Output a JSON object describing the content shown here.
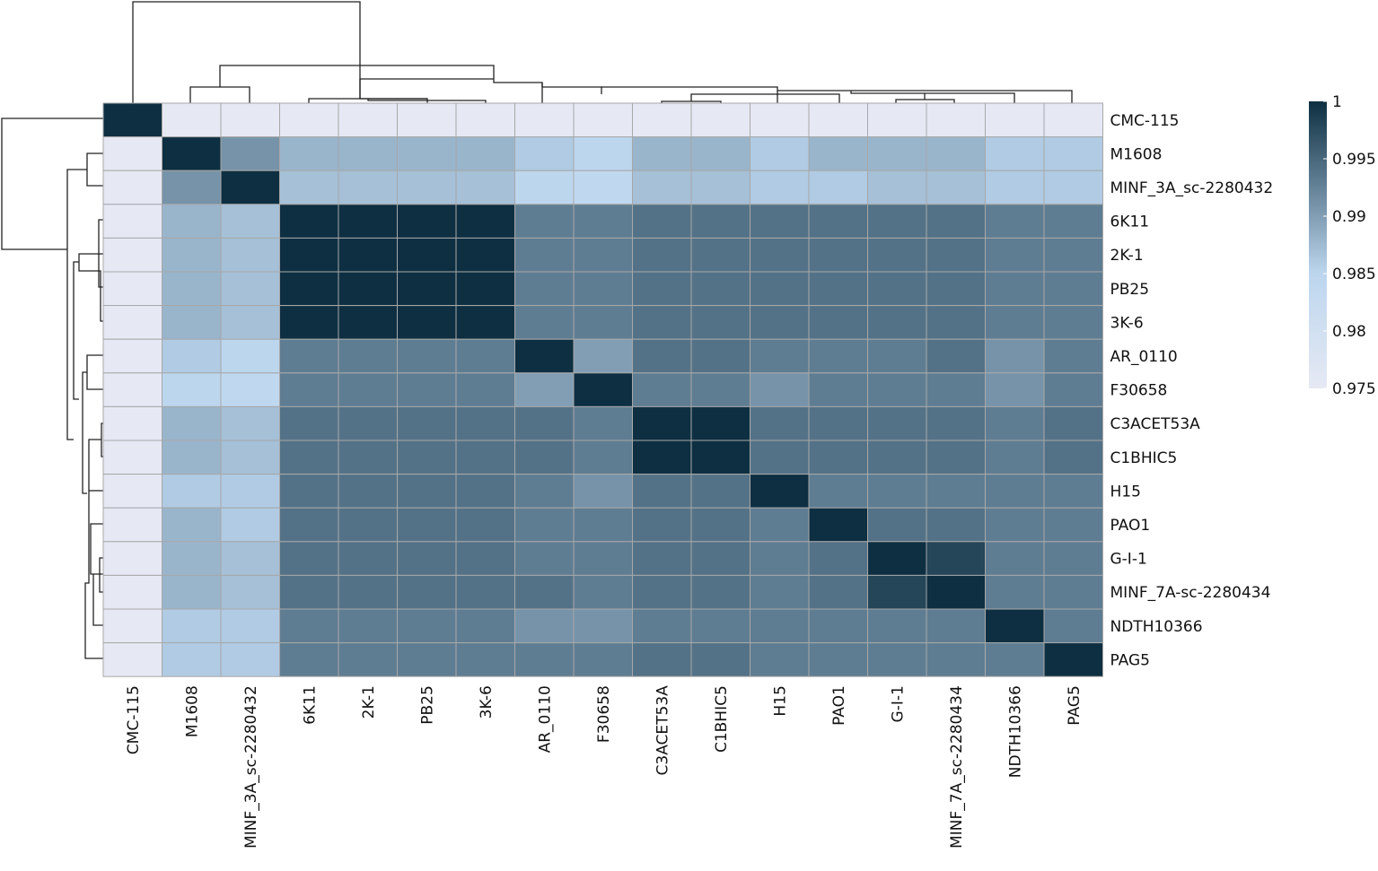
{
  "chart_data": {
    "type": "heatmap",
    "title": "",
    "rows": [
      "CMC-115",
      "M1608",
      "MINF_3A_sc-2280432",
      "6K11",
      "2K-1",
      "PB25",
      "3K-6",
      "AR_0110",
      "F30658",
      "C3ACET53A",
      "C1BHIC5",
      "H15",
      "PAO1",
      "G-I-1",
      "MINF_7A-sc-2280434",
      "NDTH10366",
      "PAG5"
    ],
    "columns": [
      "CMC-115",
      "M1608",
      "MINF_3A_sc-2280432",
      "6K11",
      "2K-1",
      "PB25",
      "3K-6",
      "AR_0110",
      "F30658",
      "C3ACET53A",
      "C1BHIC5",
      "H15",
      "PAO1",
      "G-I-1",
      "MINF_7A_sc-2280434",
      "NDTH10366",
      "PAG5"
    ],
    "values": [
      [
        1.0,
        0.975,
        0.975,
        0.975,
        0.975,
        0.975,
        0.975,
        0.975,
        0.975,
        0.975,
        0.975,
        0.975,
        0.975,
        0.975,
        0.975,
        0.975,
        0.975
      ],
      [
        0.975,
        1.0,
        0.991,
        0.988,
        0.988,
        0.988,
        0.988,
        0.986,
        0.985,
        0.988,
        0.988,
        0.986,
        0.988,
        0.988,
        0.988,
        0.986,
        0.986
      ],
      [
        0.975,
        0.991,
        1.0,
        0.987,
        0.987,
        0.987,
        0.987,
        0.985,
        0.984,
        0.987,
        0.987,
        0.986,
        0.986,
        0.987,
        0.987,
        0.986,
        0.986
      ],
      [
        0.975,
        0.988,
        0.987,
        1.0,
        1.0,
        1.0,
        1.0,
        0.993,
        0.993,
        0.994,
        0.994,
        0.994,
        0.994,
        0.994,
        0.994,
        0.993,
        0.993
      ],
      [
        0.975,
        0.988,
        0.987,
        1.0,
        1.0,
        1.0,
        1.0,
        0.993,
        0.993,
        0.994,
        0.994,
        0.994,
        0.994,
        0.994,
        0.994,
        0.993,
        0.993
      ],
      [
        0.975,
        0.988,
        0.987,
        1.0,
        1.0,
        1.0,
        1.0,
        0.993,
        0.993,
        0.994,
        0.994,
        0.994,
        0.994,
        0.994,
        0.994,
        0.993,
        0.993
      ],
      [
        0.975,
        0.988,
        0.987,
        1.0,
        1.0,
        1.0,
        1.0,
        0.993,
        0.993,
        0.994,
        0.994,
        0.994,
        0.994,
        0.994,
        0.994,
        0.993,
        0.993
      ],
      [
        0.975,
        0.986,
        0.985,
        0.993,
        0.993,
        0.993,
        0.993,
        1.0,
        0.99,
        0.994,
        0.994,
        0.993,
        0.993,
        0.993,
        0.994,
        0.991,
        0.993
      ],
      [
        0.975,
        0.985,
        0.984,
        0.993,
        0.993,
        0.993,
        0.993,
        0.99,
        1.0,
        0.993,
        0.993,
        0.991,
        0.993,
        0.993,
        0.993,
        0.991,
        0.993
      ],
      [
        0.975,
        0.988,
        0.987,
        0.994,
        0.994,
        0.994,
        0.994,
        0.994,
        0.993,
        1.0,
        1.0,
        0.994,
        0.994,
        0.994,
        0.994,
        0.993,
        0.994
      ],
      [
        0.975,
        0.988,
        0.987,
        0.994,
        0.994,
        0.994,
        0.994,
        0.994,
        0.993,
        1.0,
        1.0,
        0.994,
        0.994,
        0.994,
        0.994,
        0.993,
        0.994
      ],
      [
        0.975,
        0.986,
        0.986,
        0.994,
        0.994,
        0.994,
        0.994,
        0.993,
        0.991,
        0.994,
        0.994,
        1.0,
        0.993,
        0.993,
        0.993,
        0.993,
        0.993
      ],
      [
        0.975,
        0.988,
        0.986,
        0.994,
        0.994,
        0.994,
        0.994,
        0.993,
        0.993,
        0.994,
        0.994,
        0.993,
        1.0,
        0.994,
        0.994,
        0.993,
        0.993
      ],
      [
        0.975,
        0.988,
        0.987,
        0.994,
        0.994,
        0.994,
        0.994,
        0.993,
        0.993,
        0.994,
        0.994,
        0.993,
        0.994,
        1.0,
        0.998,
        0.993,
        0.993
      ],
      [
        0.975,
        0.988,
        0.987,
        0.994,
        0.994,
        0.994,
        0.994,
        0.994,
        0.993,
        0.994,
        0.994,
        0.993,
        0.994,
        0.998,
        1.0,
        0.993,
        0.993
      ],
      [
        0.975,
        0.986,
        0.986,
        0.993,
        0.993,
        0.993,
        0.993,
        0.991,
        0.991,
        0.993,
        0.993,
        0.993,
        0.993,
        0.993,
        0.993,
        1.0,
        0.993
      ],
      [
        0.975,
        0.986,
        0.986,
        0.993,
        0.993,
        0.993,
        0.993,
        0.993,
        0.993,
        0.994,
        0.994,
        0.993,
        0.993,
        0.993,
        0.993,
        0.993,
        1.0
      ]
    ],
    "colorbar": {
      "range": [
        0.975,
        1.0
      ],
      "ticks": [
        "1",
        "0.995",
        "0.99",
        "0.985",
        "0.98",
        "0.975"
      ],
      "low_color": "#e6e9f4",
      "mid_color": "#bcd6ee",
      "high_color": "#0e2f42"
    },
    "dendrograms": {
      "rows": true,
      "columns": true
    },
    "grid_color": "#a8a8a8"
  }
}
